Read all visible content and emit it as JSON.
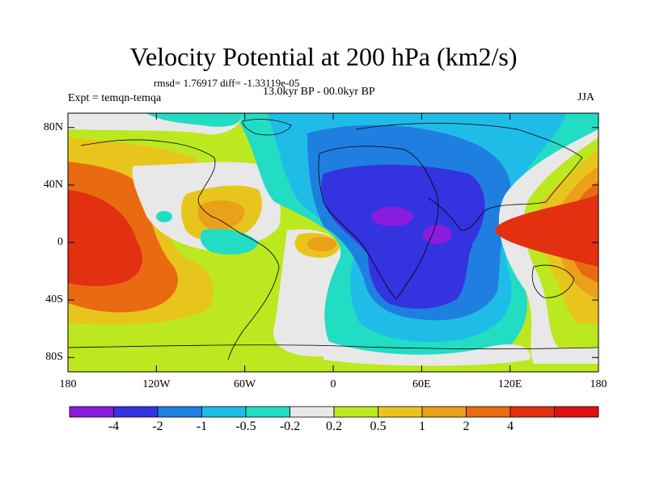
{
  "header": {
    "title": "Velocity Potential at 200 hPa (km2/s)",
    "stats": "rmsd= 1.76917  diff= -1.33119e-05",
    "period": "13.0kyr BP - 00.0kyr BP",
    "experiment": "Expt = temqn-temqa",
    "season": "JJA"
  },
  "chart_data": {
    "type": "heatmap",
    "title": "Velocity Potential at 200 hPa (km2/s)",
    "x_axis": {
      "ticks": [
        "180",
        "120W",
        "60W",
        "0",
        "60E",
        "120E",
        "180"
      ],
      "range_deg": [
        -180,
        180
      ]
    },
    "y_axis": {
      "ticks": [
        "80N",
        "40N",
        "0",
        "40S",
        "80S"
      ],
      "range_deg": [
        -90,
        90
      ]
    },
    "colorbar": {
      "levels": [
        "-4",
        "-2",
        "-1",
        "-0.5",
        "-0.2",
        "0.2",
        "0.5",
        "1",
        "2",
        "4"
      ],
      "colors": [
        "#8a1ce0",
        "#3333e0",
        "#1f7fe0",
        "#1fbce8",
        "#22dcc4",
        "#e8e8e8",
        "#bce81f",
        "#e8c51c",
        "#eaa019",
        "#ea6a12",
        "#e23010",
        "#e01010"
      ]
    },
    "features": [
      {
        "label": "Negative center (< -4)",
        "lon": 45,
        "lat": 15
      },
      {
        "label": "Negative center (< -4)",
        "lon": 75,
        "lat": 0
      },
      {
        "label": "Broad negative region (-2 to -4)",
        "lon": 40,
        "lat": 5
      },
      {
        "label": "Positive region (2 to 4)",
        "lon": 140,
        "lat": -5
      },
      {
        "label": "Positive region (2 to 4)",
        "lon": -160,
        "lat": -25
      }
    ]
  }
}
